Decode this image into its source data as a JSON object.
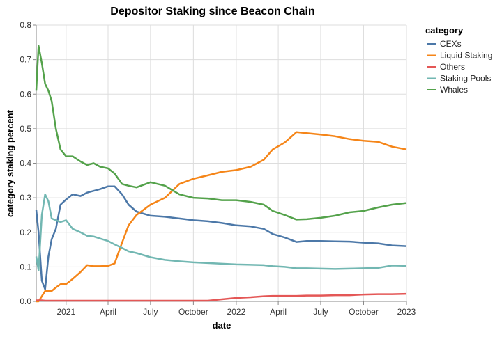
{
  "chart_data": {
    "type": "line",
    "title": "Depositor Staking since Beacon Chain",
    "xlabel": "date",
    "ylabel": "category staking percent",
    "xlim": [
      "2020-10-29",
      "2023-01-01"
    ],
    "ylim": [
      0,
      0.8
    ],
    "grid": true,
    "legend_title": "category",
    "legend_position": "right",
    "x_ticks": [
      {
        "date": "2021-01-01",
        "label": "2021"
      },
      {
        "date": "2021-04-01",
        "label": "April"
      },
      {
        "date": "2021-07-01",
        "label": "July"
      },
      {
        "date": "2021-10-01",
        "label": "October"
      },
      {
        "date": "2022-01-01",
        "label": "2022"
      },
      {
        "date": "2022-04-01",
        "label": "April"
      },
      {
        "date": "2022-07-01",
        "label": "July"
      },
      {
        "date": "2022-10-01",
        "label": "October"
      },
      {
        "date": "2023-01-01",
        "label": "2023"
      }
    ],
    "y_ticks": [
      "0.0",
      "0.1",
      "0.2",
      "0.3",
      "0.4",
      "0.5",
      "0.6",
      "0.7",
      "0.8"
    ],
    "x": [
      "2020-10-29",
      "2020-11-03",
      "2020-11-10",
      "2020-11-17",
      "2020-11-24",
      "2020-12-01",
      "2020-12-10",
      "2020-12-20",
      "2021-01-01",
      "2021-01-15",
      "2021-02-01",
      "2021-02-15",
      "2021-03-01",
      "2021-03-15",
      "2021-04-01",
      "2021-04-15",
      "2021-05-01",
      "2021-05-15",
      "2021-06-01",
      "2021-07-01",
      "2021-08-01",
      "2021-09-01",
      "2021-10-01",
      "2021-11-01",
      "2021-12-01",
      "2022-01-01",
      "2022-02-01",
      "2022-03-01",
      "2022-03-20",
      "2022-04-15",
      "2022-05-10",
      "2022-06-01",
      "2022-07-01",
      "2022-08-01",
      "2022-09-01",
      "2022-10-01",
      "2022-11-01",
      "2022-12-01",
      "2023-01-01"
    ],
    "series": [
      {
        "name": "CEXs",
        "color": "#4c78a8",
        "values": [
          0.265,
          0.2,
          0.06,
          0.035,
          0.13,
          0.18,
          0.21,
          0.28,
          0.295,
          0.31,
          0.305,
          0.315,
          0.32,
          0.325,
          0.333,
          0.333,
          0.31,
          0.28,
          0.26,
          0.248,
          0.245,
          0.24,
          0.235,
          0.232,
          0.227,
          0.22,
          0.217,
          0.21,
          0.195,
          0.185,
          0.172,
          0.175,
          0.175,
          0.174,
          0.173,
          0.17,
          0.168,
          0.162,
          0.16
        ]
      },
      {
        "name": "Liquid Staking",
        "color": "#f58518",
        "values": [
          0,
          0,
          0.015,
          0.03,
          0.03,
          0.03,
          0.04,
          0.05,
          0.05,
          0.065,
          0.085,
          0.105,
          0.102,
          0.102,
          0.103,
          0.11,
          0.17,
          0.22,
          0.25,
          0.28,
          0.3,
          0.34,
          0.355,
          0.365,
          0.375,
          0.38,
          0.39,
          0.41,
          0.44,
          0.46,
          0.49,
          0.487,
          0.483,
          0.478,
          0.47,
          0.465,
          0.462,
          0.448,
          0.44
        ]
      },
      {
        "name": "Others",
        "color": "#e45756",
        "values": [
          0.003,
          0.003,
          0.003,
          0.002,
          0.002,
          0.002,
          0.002,
          0.002,
          0.002,
          0.002,
          0.002,
          0.002,
          0.002,
          0.002,
          0.002,
          0.002,
          0.002,
          0.002,
          0.002,
          0.002,
          0.002,
          0.002,
          0.002,
          0.002,
          0.006,
          0.01,
          0.012,
          0.015,
          0.016,
          0.016,
          0.016,
          0.017,
          0.017,
          0.018,
          0.018,
          0.02,
          0.021,
          0.021,
          0.022
        ]
      },
      {
        "name": "Staking Pools",
        "color": "#72b7b2",
        "values": [
          0.13,
          0.09,
          0.25,
          0.31,
          0.29,
          0.24,
          0.235,
          0.23,
          0.235,
          0.21,
          0.2,
          0.19,
          0.188,
          0.182,
          0.175,
          0.165,
          0.155,
          0.145,
          0.14,
          0.128,
          0.12,
          0.116,
          0.113,
          0.111,
          0.109,
          0.107,
          0.106,
          0.105,
          0.102,
          0.1,
          0.096,
          0.096,
          0.095,
          0.094,
          0.095,
          0.096,
          0.097,
          0.104,
          0.103
        ]
      },
      {
        "name": "Whales",
        "color": "#54a24b",
        "values": [
          0.61,
          0.74,
          0.69,
          0.63,
          0.61,
          0.58,
          0.5,
          0.44,
          0.42,
          0.42,
          0.405,
          0.395,
          0.4,
          0.39,
          0.385,
          0.37,
          0.34,
          0.335,
          0.33,
          0.345,
          0.335,
          0.31,
          0.3,
          0.298,
          0.293,
          0.293,
          0.288,
          0.28,
          0.262,
          0.25,
          0.237,
          0.238,
          0.242,
          0.248,
          0.258,
          0.262,
          0.272,
          0.28,
          0.285
        ]
      }
    ]
  }
}
